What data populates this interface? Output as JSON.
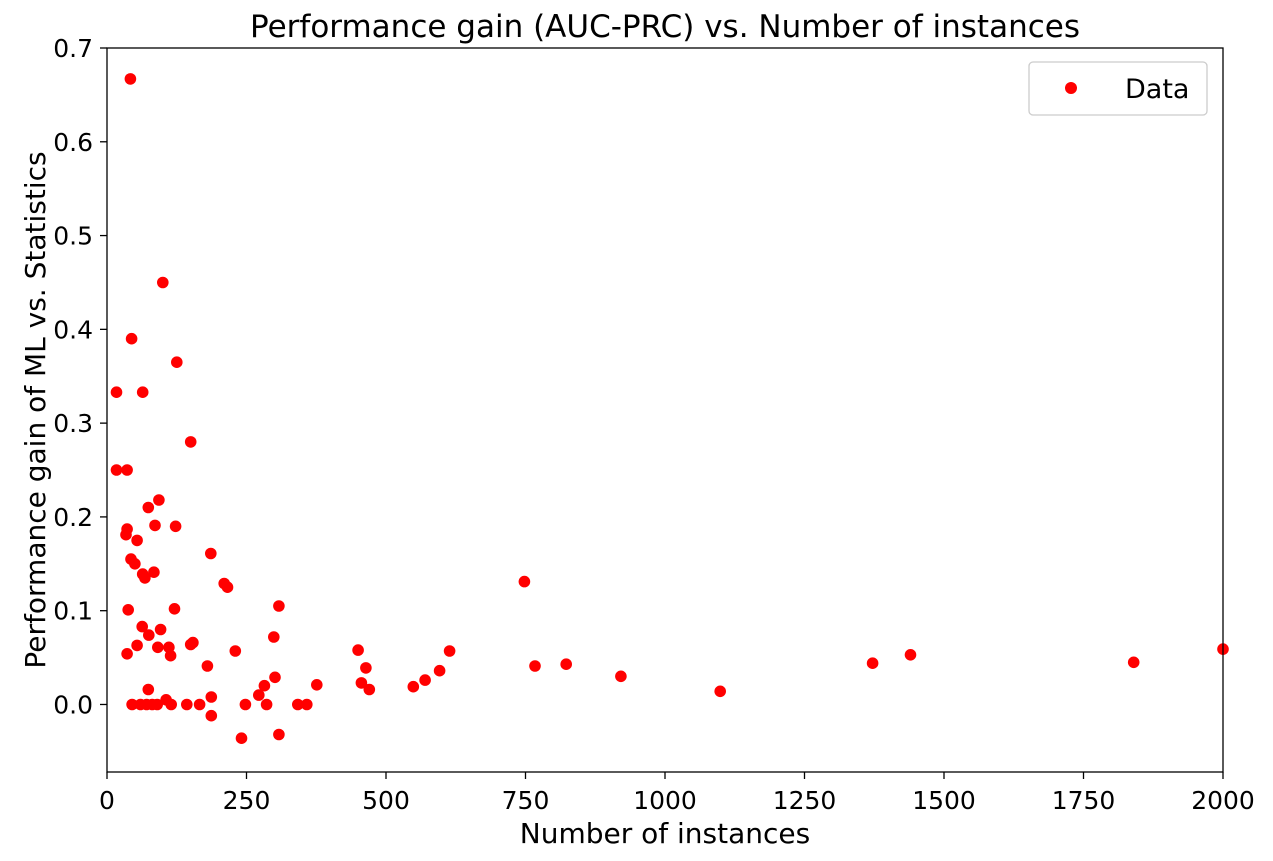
{
  "chart_data": {
    "type": "scatter",
    "title": "Performance gain (AUC-PRC) vs. Number of instances",
    "xlabel": "Number of instances",
    "ylabel": "Performance gain of ML vs. Statistics",
    "xlim": [
      0,
      2000
    ],
    "ylim": [
      -0.072,
      0.7
    ],
    "xticks": [
      0,
      250,
      500,
      750,
      1000,
      1250,
      1500,
      1750,
      2000
    ],
    "xtick_labels": [
      "0",
      "250",
      "500",
      "750",
      "1000",
      "1250",
      "1500",
      "1750",
      "2000"
    ],
    "yticks": [
      0.0,
      0.1,
      0.2,
      0.3,
      0.4,
      0.5,
      0.6,
      0.7
    ],
    "ytick_labels": [
      "0.0",
      "0.1",
      "0.2",
      "0.3",
      "0.4",
      "0.5",
      "0.6",
      "0.7"
    ],
    "grid": false,
    "legend": {
      "position": "top-right",
      "entries": [
        "Data"
      ]
    },
    "marker_color": "#ff0000",
    "series": [
      {
        "name": "Data",
        "points": [
          [
            42,
            0.667
          ],
          [
            100,
            0.45
          ],
          [
            44,
            0.39
          ],
          [
            125,
            0.365
          ],
          [
            17,
            0.333
          ],
          [
            64,
            0.333
          ],
          [
            150,
            0.28
          ],
          [
            17,
            0.25
          ],
          [
            36,
            0.25
          ],
          [
            93,
            0.218
          ],
          [
            74,
            0.21
          ],
          [
            123,
            0.19
          ],
          [
            86,
            0.191
          ],
          [
            36,
            0.187
          ],
          [
            34,
            0.181
          ],
          [
            54,
            0.175
          ],
          [
            186,
            0.161
          ],
          [
            43,
            0.155
          ],
          [
            50,
            0.15
          ],
          [
            84,
            0.141
          ],
          [
            64,
            0.139
          ],
          [
            68,
            0.135
          ],
          [
            210,
            0.129
          ],
          [
            216,
            0.125
          ],
          [
            748,
            0.131
          ],
          [
            308,
            0.105
          ],
          [
            38,
            0.101
          ],
          [
            121,
            0.102
          ],
          [
            63,
            0.083
          ],
          [
            96,
            0.08
          ],
          [
            75,
            0.074
          ],
          [
            299,
            0.072
          ],
          [
            154,
            0.066
          ],
          [
            150,
            0.064
          ],
          [
            54,
            0.063
          ],
          [
            111,
            0.061
          ],
          [
            91,
            0.061
          ],
          [
            450,
            0.058
          ],
          [
            230,
            0.057
          ],
          [
            36,
            0.054
          ],
          [
            114,
            0.052
          ],
          [
            614,
            0.057
          ],
          [
            1440,
            0.053
          ],
          [
            1372,
            0.044
          ],
          [
            1840,
            0.045
          ],
          [
            2000,
            0.059
          ],
          [
            823,
            0.043
          ],
          [
            767,
            0.041
          ],
          [
            180,
            0.041
          ],
          [
            464,
            0.039
          ],
          [
            596,
            0.036
          ],
          [
            921,
            0.03
          ],
          [
            301,
            0.029
          ],
          [
            570,
            0.026
          ],
          [
            456,
            0.023
          ],
          [
            376,
            0.021
          ],
          [
            282,
            0.02
          ],
          [
            549,
            0.019
          ],
          [
            470,
            0.016
          ],
          [
            74,
            0.016
          ],
          [
            1099,
            0.014
          ],
          [
            272,
            0.01
          ],
          [
            187,
            0.008
          ],
          [
            106,
            0.005
          ],
          [
            45,
            0.0
          ],
          [
            60,
            0.0
          ],
          [
            71,
            0.0
          ],
          [
            81,
            0.0
          ],
          [
            90,
            0.0
          ],
          [
            115,
            0.0
          ],
          [
            143,
            0.0
          ],
          [
            166,
            0.0
          ],
          [
            248,
            0.0
          ],
          [
            286,
            0.0
          ],
          [
            342,
            0.0
          ],
          [
            358,
            0.0
          ],
          [
            187,
            -0.012
          ],
          [
            308,
            -0.032
          ],
          [
            241,
            -0.036
          ]
        ]
      }
    ]
  }
}
